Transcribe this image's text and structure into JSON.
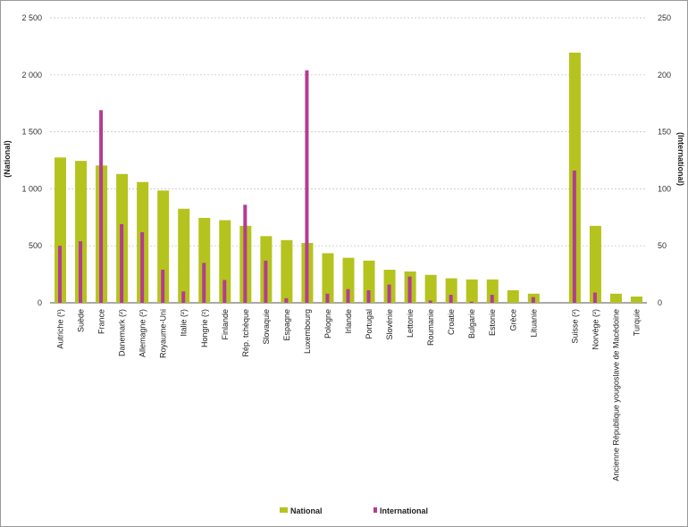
{
  "chart_data": {
    "type": "bar",
    "left_axis": {
      "label": "(National)",
      "ylim": [
        0,
        2500
      ],
      "ticks": [
        "0",
        "500",
        "1 000",
        "1 500",
        "2 000",
        "2 500"
      ]
    },
    "right_axis": {
      "label": "(International)",
      "ylim": [
        0,
        250
      ],
      "ticks": [
        "0",
        "50",
        "100",
        "150",
        "200",
        "250"
      ]
    },
    "grid": true,
    "legend_position": "bottom",
    "categories": [
      "Autriche (¹)",
      "Suède",
      "France",
      "Danemark (²)",
      "Allemagne (²)",
      "Royaume-Uni",
      "Italie (²)",
      "Hongrie (²)",
      "Finlande",
      "Rép. tchèque",
      "Slovaquie",
      "Espagne",
      "Luxembourg",
      "Pologne",
      "Irlande",
      "Portugal",
      "Slovénie",
      "Lettonie",
      "Roumanie",
      "Croatie",
      "Bulgarie",
      "Estonie",
      "Grèce",
      "Lituanie",
      "",
      "Suisse (²)",
      "Norvège (²)",
      "Ancienne République yougoslave de Macédoine",
      "Turquie"
    ],
    "series": [
      {
        "name": "National",
        "axis": "left",
        "color": "#b5c31e",
        "values": [
          1275,
          1245,
          1205,
          1130,
          1060,
          985,
          825,
          745,
          725,
          675,
          585,
          550,
          525,
          435,
          395,
          370,
          290,
          275,
          245,
          215,
          205,
          205,
          110,
          80,
          null,
          2195,
          675,
          80,
          55
        ]
      },
      {
        "name": "International",
        "axis": "right",
        "color": "#b43c91",
        "values": [
          50,
          54,
          169,
          69,
          62,
          29,
          10,
          35,
          20,
          86,
          37,
          4,
          204,
          8,
          12,
          11,
          16,
          23,
          2,
          7,
          1,
          7,
          0,
          5,
          null,
          116,
          9,
          0,
          0
        ]
      }
    ]
  }
}
